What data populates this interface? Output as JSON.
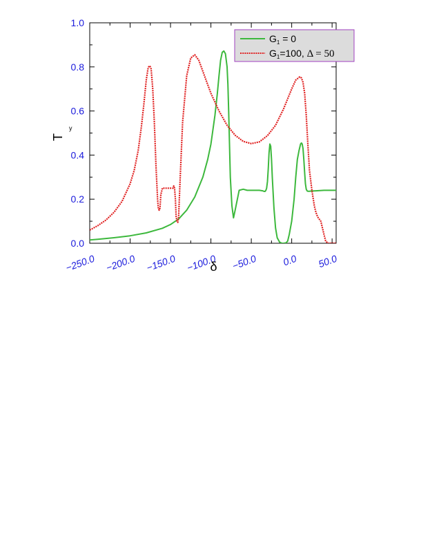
{
  "chart_data": {
    "type": "line",
    "xlabel": "δ",
    "ylabel": {
      "main": "T",
      "sub": "y"
    },
    "xlim": [
      -250,
      55
    ],
    "ylim": [
      0,
      1.0
    ],
    "x_ticks": [
      -250,
      -200,
      -150,
      -100,
      -50,
      0,
      50
    ],
    "x_tick_labels": [
      "−250.0",
      "−200.0",
      "−150.0",
      "−100.0",
      "−50.0",
      "0.0",
      "50.0"
    ],
    "y_ticks": [
      0,
      0.2,
      0.4,
      0.6,
      0.8,
      1.0
    ],
    "y_tick_labels": [
      "0.0",
      "0.2",
      "0.4",
      "0.6",
      "0.8",
      "1.0"
    ],
    "grid": false,
    "legend_position": "top-right",
    "series": [
      {
        "legend": {
          "pre": "G",
          "sub": "1",
          "post": " = 0",
          "extra": ""
        },
        "color": "#3cb83c",
        "style": "solid",
        "x": [
          -250,
          -240,
          -220,
          -200,
          -180,
          -160,
          -150,
          -140,
          -130,
          -120,
          -110,
          -104,
          -100,
          -95,
          -92,
          -90,
          -88,
          -86,
          -84,
          -82,
          -80,
          -79,
          -78,
          -77,
          -76,
          -74,
          -72,
          -70,
          -65,
          -60,
          -55,
          -50,
          -45,
          -40,
          -36,
          -34,
          -33,
          -32,
          -31,
          -30,
          -29,
          -28,
          -27,
          -26,
          -25,
          -24,
          -22,
          -20,
          -18,
          -15,
          -12,
          -10,
          -7,
          -5,
          -3,
          0,
          3,
          5,
          7,
          9,
          11,
          12,
          13,
          14,
          15,
          16,
          17,
          18,
          19,
          20,
          22,
          25,
          30,
          35,
          40,
          45,
          50,
          55
        ],
        "y": [
          0.015,
          0.018,
          0.025,
          0.034,
          0.047,
          0.068,
          0.085,
          0.11,
          0.15,
          0.21,
          0.3,
          0.38,
          0.45,
          0.58,
          0.68,
          0.76,
          0.83,
          0.866,
          0.872,
          0.86,
          0.8,
          0.72,
          0.6,
          0.45,
          0.3,
          0.17,
          0.115,
          0.15,
          0.24,
          0.245,
          0.24,
          0.24,
          0.24,
          0.24,
          0.238,
          0.235,
          0.235,
          0.24,
          0.25,
          0.28,
          0.34,
          0.41,
          0.45,
          0.44,
          0.38,
          0.3,
          0.16,
          0.07,
          0.025,
          0.005,
          0.0,
          0.0,
          0.002,
          0.01,
          0.04,
          0.1,
          0.2,
          0.3,
          0.38,
          0.42,
          0.45,
          0.455,
          0.45,
          0.43,
          0.38,
          0.32,
          0.27,
          0.245,
          0.238,
          0.236,
          0.236,
          0.237,
          0.238,
          0.239,
          0.24,
          0.24,
          0.24,
          0.24
        ]
      },
      {
        "legend": {
          "pre": "G",
          "sub": "1",
          "post": "=100, ",
          "extra": "Δ = 50"
        },
        "color": "#e02020",
        "style": "dotted",
        "x": [
          -250,
          -240,
          -230,
          -220,
          -210,
          -200,
          -195,
          -190,
          -186,
          -183,
          -180,
          -178,
          -177,
          -176,
          -175,
          -174,
          -172,
          -170,
          -168,
          -166,
          -165,
          -164,
          -163,
          -162,
          -160,
          -155,
          -150,
          -147,
          -146,
          -145,
          -144,
          -143,
          -142,
          -141,
          -140,
          -138,
          -135,
          -130,
          -125,
          -120,
          -115,
          -110,
          -100,
          -90,
          -80,
          -70,
          -60,
          -50,
          -40,
          -30,
          -20,
          -10,
          0,
          5,
          10,
          12,
          14,
          16,
          18,
          20,
          22,
          25,
          28,
          30,
          32,
          34,
          36,
          38,
          40,
          42,
          45,
          48,
          50,
          55
        ],
        "y": [
          0.06,
          0.08,
          0.105,
          0.14,
          0.19,
          0.27,
          0.33,
          0.42,
          0.53,
          0.63,
          0.74,
          0.79,
          0.8,
          0.805,
          0.8,
          0.79,
          0.7,
          0.55,
          0.35,
          0.2,
          0.155,
          0.15,
          0.16,
          0.22,
          0.25,
          0.25,
          0.25,
          0.25,
          0.26,
          0.25,
          0.2,
          0.12,
          0.1,
          0.095,
          0.12,
          0.3,
          0.55,
          0.76,
          0.84,
          0.855,
          0.83,
          0.78,
          0.68,
          0.6,
          0.535,
          0.49,
          0.462,
          0.452,
          0.46,
          0.488,
          0.535,
          0.61,
          0.7,
          0.74,
          0.755,
          0.75,
          0.73,
          0.68,
          0.58,
          0.45,
          0.33,
          0.24,
          0.17,
          0.14,
          0.12,
          0.11,
          0.1,
          0.07,
          0.04,
          0.01,
          0.0,
          0.0,
          0.0,
          0.0
        ]
      }
    ]
  }
}
